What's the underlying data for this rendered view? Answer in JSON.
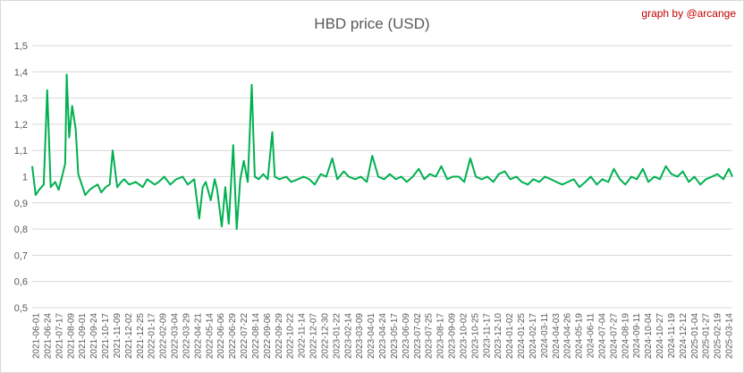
{
  "chart_data": {
    "type": "line",
    "title": "HBD price (USD)",
    "credit": "graph by @arcange",
    "xlabel": "",
    "ylabel": "",
    "ylim": [
      0.5,
      1.5
    ],
    "yticks": [
      "0,5",
      "0,6",
      "0,7",
      "0,8",
      "0,9",
      "1",
      "1,1",
      "1,2",
      "1,3",
      "1,4",
      "1,5"
    ],
    "grid": true,
    "legend": "none",
    "line_color": "#00b050",
    "xticks": [
      "2021-06-01",
      "2021-06-24",
      "2021-07-17",
      "2021-08-09",
      "2021-09-01",
      "2021-09-24",
      "2021-10-17",
      "2021-11-09",
      "2021-12-02",
      "2021-12-25",
      "2022-01-17",
      "2022-02-09",
      "2022-03-04",
      "2022-03-29",
      "2022-04-21",
      "2022-05-14",
      "2022-06-06",
      "2022-06-29",
      "2022-07-22",
      "2022-08-14",
      "2022-09-06",
      "2022-09-29",
      "2022-10-22",
      "2022-11-14",
      "2022-12-07",
      "2022-12-30",
      "2023-01-22",
      "2023-02-14",
      "2023-03-09",
      "2023-04-01",
      "2023-04-24",
      "2023-05-17",
      "2023-06-09",
      "2023-07-02",
      "2023-07-25",
      "2023-08-17",
      "2023-09-09",
      "2023-10-02",
      "2023-10-25",
      "2023-11-17",
      "2023-12-10",
      "2024-01-02",
      "2024-01-25",
      "2024-02-17",
      "2024-03-11",
      "2024-04-03",
      "2024-04-26",
      "2024-05-19",
      "2024-06-11",
      "2024-07-04",
      "2024-07-27",
      "2024-08-19",
      "2024-09-11",
      "2024-10-04",
      "2024-10-27",
      "2024-11-19",
      "2024-12-12",
      "2025-01-04",
      "2025-01-27",
      "2025-02-19",
      "2025-03-14"
    ],
    "x": [
      "2021-06-01",
      "2021-06-08",
      "2021-06-15",
      "2021-06-24",
      "2021-07-01",
      "2021-07-08",
      "2021-07-17",
      "2021-07-24",
      "2021-08-01",
      "2021-08-06",
      "2021-08-09",
      "2021-08-14",
      "2021-08-20",
      "2021-08-27",
      "2021-09-01",
      "2021-09-08",
      "2021-09-15",
      "2021-09-24",
      "2021-10-01",
      "2021-10-10",
      "2021-10-17",
      "2021-10-26",
      "2021-11-03",
      "2021-11-09",
      "2021-11-18",
      "2021-11-26",
      "2021-12-02",
      "2021-12-12",
      "2021-12-25",
      "2022-01-08",
      "2022-01-17",
      "2022-02-01",
      "2022-02-09",
      "2022-02-20",
      "2022-03-04",
      "2022-03-16",
      "2022-03-29",
      "2022-04-08",
      "2022-04-21",
      "2022-05-01",
      "2022-05-08",
      "2022-05-14",
      "2022-05-24",
      "2022-06-01",
      "2022-06-06",
      "2022-06-15",
      "2022-06-22",
      "2022-06-29",
      "2022-07-08",
      "2022-07-15",
      "2022-07-22",
      "2022-07-29",
      "2022-08-06",
      "2022-08-14",
      "2022-08-20",
      "2022-08-28",
      "2022-09-06",
      "2022-09-15",
      "2022-09-24",
      "2022-09-29",
      "2022-10-08",
      "2022-10-22",
      "2022-11-01",
      "2022-11-14",
      "2022-11-26",
      "2022-12-07",
      "2022-12-18",
      "2022-12-30",
      "2023-01-10",
      "2023-01-22",
      "2023-02-01",
      "2023-02-14",
      "2023-02-24",
      "2023-03-09",
      "2023-03-20",
      "2023-04-01",
      "2023-04-12",
      "2023-04-24",
      "2023-05-06",
      "2023-05-17",
      "2023-05-29",
      "2023-06-09",
      "2023-06-20",
      "2023-07-02",
      "2023-07-14",
      "2023-07-25",
      "2023-08-05",
      "2023-08-17",
      "2023-08-28",
      "2023-09-09",
      "2023-09-20",
      "2023-10-02",
      "2023-10-13",
      "2023-10-25",
      "2023-11-05",
      "2023-11-17",
      "2023-11-28",
      "2023-12-10",
      "2023-12-21",
      "2024-01-02",
      "2024-01-13",
      "2024-01-25",
      "2024-02-05",
      "2024-02-17",
      "2024-02-28",
      "2024-03-11",
      "2024-03-22",
      "2024-04-03",
      "2024-04-14",
      "2024-04-26",
      "2024-05-07",
      "2024-05-19",
      "2024-05-30",
      "2024-06-11",
      "2024-06-22",
      "2024-07-04",
      "2024-07-15",
      "2024-07-27",
      "2024-08-07",
      "2024-08-19",
      "2024-08-30",
      "2024-09-11",
      "2024-09-22",
      "2024-10-04",
      "2024-10-15",
      "2024-10-27",
      "2024-11-07",
      "2024-11-19",
      "2024-11-30",
      "2024-12-12",
      "2024-12-23",
      "2025-01-04",
      "2025-01-15",
      "2025-01-27",
      "2025-02-07",
      "2025-02-19",
      "2025-03-02",
      "2025-03-14",
      "2025-03-25",
      "2025-04-01"
    ],
    "y": [
      1.04,
      0.93,
      0.95,
      0.97,
      1.33,
      0.96,
      0.98,
      0.95,
      1.01,
      1.05,
      1.39,
      1.15,
      1.27,
      1.18,
      1.01,
      0.97,
      0.93,
      0.95,
      0.96,
      0.97,
      0.94,
      0.96,
      0.97,
      1.1,
      0.96,
      0.98,
      0.99,
      0.97,
      0.98,
      0.96,
      0.99,
      0.97,
      0.98,
      1.0,
      0.97,
      0.99,
      1.0,
      0.97,
      0.99,
      0.84,
      0.96,
      0.98,
      0.91,
      0.99,
      0.95,
      0.81,
      0.96,
      0.82,
      1.12,
      0.8,
      0.99,
      1.06,
      0.98,
      1.35,
      1.0,
      0.99,
      1.01,
      0.99,
      1.17,
      1.0,
      0.99,
      1.0,
      0.98,
      0.99,
      1.0,
      0.99,
      0.97,
      1.01,
      1.0,
      1.07,
      0.99,
      1.02,
      1.0,
      0.99,
      1.0,
      0.98,
      1.08,
      1.0,
      0.99,
      1.01,
      0.99,
      1.0,
      0.98,
      1.0,
      1.03,
      0.99,
      1.01,
      1.0,
      1.04,
      0.99,
      1.0,
      1.0,
      0.98,
      1.07,
      1.0,
      0.99,
      1.0,
      0.98,
      1.01,
      1.02,
      0.99,
      1.0,
      0.98,
      0.97,
      0.99,
      0.98,
      1.0,
      0.99,
      0.98,
      0.97,
      0.98,
      0.99,
      0.96,
      0.98,
      1.0,
      0.97,
      0.99,
      0.98,
      1.03,
      0.99,
      0.97,
      1.0,
      0.99,
      1.03,
      0.98,
      1.0,
      0.99,
      1.04,
      1.01,
      1.0,
      1.02,
      0.98,
      1.0,
      0.97,
      0.99,
      1.0,
      1.01,
      0.99,
      1.03,
      1.0
    ]
  }
}
